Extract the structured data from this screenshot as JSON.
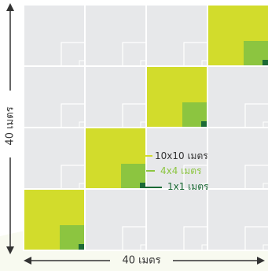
{
  "dimensions": {
    "vertical_label": "40 เมตร",
    "horizontal_label": "40 เมตร"
  },
  "grid": {
    "rows": 4,
    "cols": 4,
    "highlighted_cells": [
      {
        "row": 0,
        "col": 3
      },
      {
        "row": 1,
        "col": 2
      },
      {
        "row": 2,
        "col": 1
      },
      {
        "row": 3,
        "col": 0
      }
    ]
  },
  "legend": {
    "items": [
      {
        "label": "10x10 เมตร",
        "color": "#d2dc2c"
      },
      {
        "label": "4x4 เมตร",
        "color": "#8cc540"
      },
      {
        "label": "1x1 เมตร",
        "color": "#1b6a35"
      }
    ]
  },
  "colors": {
    "cell_bg": "#e7e8ea",
    "grid_line": "#ffffff",
    "arrow": "#333333",
    "label_text": "#333333"
  }
}
